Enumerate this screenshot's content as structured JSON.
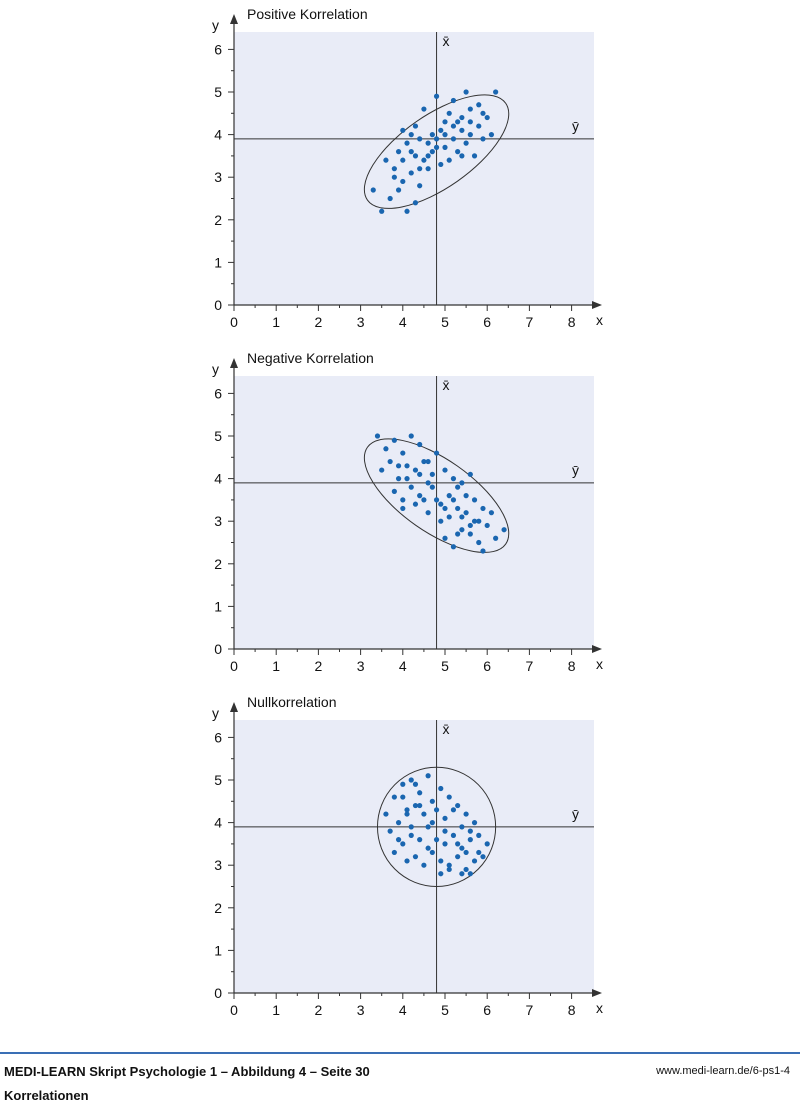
{
  "colors": {
    "plot_background": "#e9ecf7",
    "point": "#1a66b0",
    "lines": "#333333",
    "footer_rule": "#3a6fb5"
  },
  "chart_data": [
    {
      "type": "scatter",
      "title": "Positive Korrelation",
      "xlabel": "x",
      "ylabel": "y",
      "xlim": [
        0,
        8.5
      ],
      "ylim": [
        0,
        6.4
      ],
      "x_ticks": [
        "0",
        "1",
        "2",
        "3",
        "4",
        "5",
        "6",
        "7",
        "8"
      ],
      "y_ticks": [
        "0",
        "1",
        "2",
        "3",
        "4",
        "5",
        "6"
      ],
      "grid": false,
      "mean_x_label": "x̄",
      "mean_y_label": "ȳ",
      "mean_x": 4.8,
      "mean_y": 3.9,
      "ellipse": {
        "cx": 4.8,
        "cy": 3.6,
        "rx": 2.0,
        "ry": 0.85,
        "angle_deg": 35
      },
      "correlation": "positive",
      "points": [
        [
          3.3,
          2.7
        ],
        [
          3.5,
          2.2
        ],
        [
          3.7,
          2.5
        ],
        [
          3.9,
          2.7
        ],
        [
          4.1,
          2.2
        ],
        [
          4.3,
          2.4
        ],
        [
          3.6,
          3.4
        ],
        [
          3.8,
          3.0
        ],
        [
          4.0,
          2.9
        ],
        [
          4.2,
          3.1
        ],
        [
          4.4,
          2.8
        ],
        [
          4.6,
          3.2
        ],
        [
          3.9,
          3.6
        ],
        [
          4.1,
          3.8
        ],
        [
          4.3,
          3.5
        ],
        [
          4.5,
          3.4
        ],
        [
          4.7,
          3.6
        ],
        [
          4.9,
          3.3
        ],
        [
          4.0,
          4.1
        ],
        [
          4.2,
          4.0
        ],
        [
          4.4,
          3.9
        ],
        [
          4.6,
          3.8
        ],
        [
          4.8,
          3.9
        ],
        [
          5.0,
          3.7
        ],
        [
          4.5,
          4.6
        ],
        [
          4.8,
          4.9
        ],
        [
          5.0,
          4.3
        ],
        [
          5.2,
          4.2
        ],
        [
          5.4,
          4.4
        ],
        [
          5.6,
          4.3
        ],
        [
          5.1,
          3.4
        ],
        [
          5.3,
          3.6
        ],
        [
          5.5,
          3.8
        ],
        [
          5.7,
          3.5
        ],
        [
          5.9,
          3.9
        ],
        [
          6.1,
          4.0
        ],
        [
          5.2,
          4.8
        ],
        [
          5.5,
          5.0
        ],
        [
          5.8,
          4.7
        ],
        [
          6.2,
          5.0
        ],
        [
          4.4,
          3.2
        ],
        [
          4.6,
          3.5
        ],
        [
          4.8,
          3.7
        ],
        [
          5.0,
          4.0
        ],
        [
          5.2,
          3.9
        ],
        [
          5.4,
          4.1
        ],
        [
          5.6,
          4.0
        ],
        [
          5.8,
          4.2
        ],
        [
          6.0,
          4.4
        ],
        [
          4.2,
          3.6
        ],
        [
          3.8,
          3.2
        ],
        [
          4.0,
          3.4
        ],
        [
          4.9,
          4.1
        ],
        [
          5.1,
          4.5
        ],
        [
          5.3,
          4.3
        ],
        [
          5.6,
          4.6
        ],
        [
          5.9,
          4.5
        ],
        [
          4.3,
          4.2
        ],
        [
          4.7,
          4.0
        ],
        [
          5.4,
          3.5
        ]
      ]
    },
    {
      "type": "scatter",
      "title": "Negative Korrelation",
      "xlabel": "x",
      "ylabel": "y",
      "xlim": [
        0,
        8.5
      ],
      "ylim": [
        0,
        6.4
      ],
      "x_ticks": [
        "0",
        "1",
        "2",
        "3",
        "4",
        "5",
        "6",
        "7",
        "8"
      ],
      "y_ticks": [
        "0",
        "1",
        "2",
        "3",
        "4",
        "5",
        "6"
      ],
      "grid": false,
      "mean_x_label": "x̄",
      "mean_y_label": "ȳ",
      "mean_x": 4.8,
      "mean_y": 3.9,
      "ellipse": {
        "cx": 4.8,
        "cy": 3.6,
        "rx": 2.0,
        "ry": 0.85,
        "angle_deg": -35
      },
      "correlation": "negative",
      "points": [
        [
          3.4,
          5.0
        ],
        [
          3.6,
          4.7
        ],
        [
          3.8,
          4.9
        ],
        [
          4.0,
          4.6
        ],
        [
          4.2,
          5.0
        ],
        [
          4.4,
          4.8
        ],
        [
          3.5,
          4.2
        ],
        [
          3.7,
          4.4
        ],
        [
          3.9,
          4.0
        ],
        [
          4.1,
          4.3
        ],
        [
          4.3,
          4.2
        ],
        [
          4.5,
          4.4
        ],
        [
          3.8,
          3.7
        ],
        [
          4.0,
          3.5
        ],
        [
          4.2,
          3.8
        ],
        [
          4.4,
          3.6
        ],
        [
          4.6,
          3.9
        ],
        [
          4.8,
          3.5
        ],
        [
          4.0,
          3.3
        ],
        [
          4.3,
          3.4
        ],
        [
          4.6,
          3.2
        ],
        [
          4.9,
          3.4
        ],
        [
          5.1,
          3.6
        ],
        [
          5.3,
          3.8
        ],
        [
          5.0,
          4.2
        ],
        [
          5.2,
          4.0
        ],
        [
          5.4,
          3.9
        ],
        [
          5.6,
          4.1
        ],
        [
          4.9,
          3.0
        ],
        [
          5.1,
          3.1
        ],
        [
          5.3,
          3.3
        ],
        [
          5.5,
          3.2
        ],
        [
          5.7,
          3.5
        ],
        [
          5.9,
          3.3
        ],
        [
          5.0,
          2.6
        ],
        [
          5.2,
          2.4
        ],
        [
          5.4,
          2.8
        ],
        [
          5.6,
          2.7
        ],
        [
          5.8,
          2.5
        ],
        [
          6.0,
          2.9
        ],
        [
          6.2,
          2.6
        ],
        [
          6.4,
          2.8
        ],
        [
          4.7,
          3.8
        ],
        [
          4.5,
          3.5
        ],
        [
          4.7,
          4.1
        ],
        [
          5.0,
          3.3
        ],
        [
          5.2,
          3.5
        ],
        [
          5.4,
          3.1
        ],
        [
          5.6,
          2.9
        ],
        [
          5.8,
          3.0
        ],
        [
          6.1,
          3.2
        ],
        [
          4.1,
          4.0
        ],
        [
          4.4,
          4.1
        ],
        [
          3.9,
          4.3
        ],
        [
          5.5,
          3.6
        ],
        [
          5.7,
          3.0
        ],
        [
          5.3,
          2.7
        ],
        [
          4.8,
          4.6
        ],
        [
          4.6,
          4.4
        ],
        [
          5.9,
          2.3
        ]
      ]
    },
    {
      "type": "scatter",
      "title": "Nullkorrelation",
      "xlabel": "x",
      "ylabel": "y",
      "xlim": [
        0,
        8.5
      ],
      "ylim": [
        0,
        6.4
      ],
      "x_ticks": [
        "0",
        "1",
        "2",
        "3",
        "4",
        "5",
        "6",
        "7",
        "8"
      ],
      "y_ticks": [
        "0",
        "1",
        "2",
        "3",
        "4",
        "5",
        "6"
      ],
      "grid": false,
      "mean_x_label": "x̄",
      "mean_y_label": "ȳ",
      "mean_x": 4.8,
      "mean_y": 3.9,
      "ellipse": {
        "cx": 4.8,
        "cy": 3.9,
        "rx": 1.4,
        "ry": 1.4,
        "angle_deg": 0
      },
      "correlation": "none",
      "points": [
        [
          3.6,
          4.2
        ],
        [
          3.8,
          4.6
        ],
        [
          4.0,
          4.9
        ],
        [
          4.2,
          5.0
        ],
        [
          4.4,
          4.7
        ],
        [
          4.6,
          5.1
        ],
        [
          3.7,
          3.8
        ],
        [
          3.9,
          4.0
        ],
        [
          4.1,
          4.3
        ],
        [
          4.3,
          4.4
        ],
        [
          4.5,
          4.2
        ],
        [
          4.7,
          4.5
        ],
        [
          3.8,
          3.3
        ],
        [
          4.0,
          3.5
        ],
        [
          4.2,
          3.7
        ],
        [
          4.4,
          3.6
        ],
        [
          4.6,
          3.9
        ],
        [
          4.8,
          3.6
        ],
        [
          4.1,
          3.1
        ],
        [
          4.3,
          3.2
        ],
        [
          4.5,
          3.0
        ],
        [
          4.7,
          3.3
        ],
        [
          4.9,
          3.1
        ],
        [
          5.1,
          2.9
        ],
        [
          4.9,
          4.8
        ],
        [
          5.1,
          4.6
        ],
        [
          5.3,
          4.4
        ],
        [
          5.5,
          4.2
        ],
        [
          5.7,
          4.0
        ],
        [
          5.0,
          4.1
        ],
        [
          5.0,
          3.5
        ],
        [
          5.2,
          3.7
        ],
        [
          5.4,
          3.4
        ],
        [
          5.6,
          3.6
        ],
        [
          5.8,
          3.3
        ],
        [
          6.0,
          3.5
        ],
        [
          5.1,
          3.0
        ],
        [
          5.3,
          3.2
        ],
        [
          5.5,
          2.9
        ],
        [
          5.7,
          3.1
        ],
        [
          5.9,
          3.2
        ],
        [
          5.4,
          2.8
        ],
        [
          4.0,
          4.6
        ],
        [
          4.4,
          4.4
        ],
        [
          4.8,
          4.3
        ],
        [
          5.2,
          4.3
        ],
        [
          5.6,
          3.8
        ],
        [
          4.2,
          3.9
        ],
        [
          4.6,
          3.4
        ],
        [
          5.0,
          3.8
        ],
        [
          5.4,
          3.9
        ],
        [
          5.8,
          3.7
        ],
        [
          4.3,
          4.9
        ],
        [
          3.9,
          3.6
        ],
        [
          4.9,
          2.8
        ],
        [
          5.6,
          2.8
        ],
        [
          4.1,
          4.2
        ],
        [
          5.3,
          3.5
        ],
        [
          4.7,
          4.0
        ],
        [
          5.5,
          3.3
        ]
      ]
    }
  ],
  "footer": {
    "title": "MEDI-LEARN Skript Psychologie 1 – Abbildung 4 – Seite 30",
    "subtitle": "Korrelationen",
    "url": "www.medi-learn.de/6-ps1-4"
  }
}
